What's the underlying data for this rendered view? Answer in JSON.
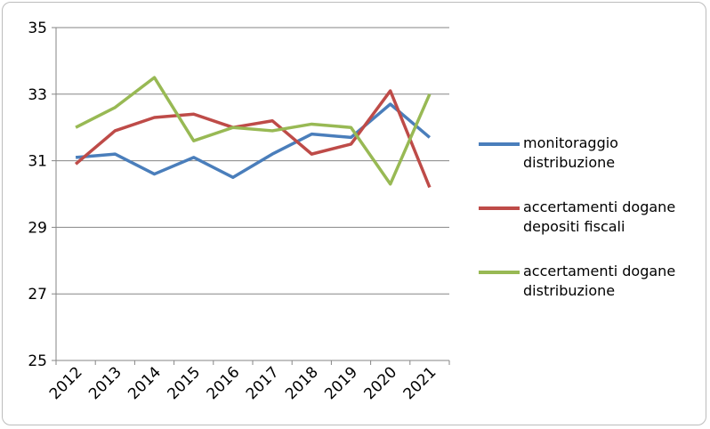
{
  "chart_data": {
    "type": "line",
    "categories": [
      "2012",
      "2013",
      "2014",
      "2015",
      "2016",
      "2017",
      "2018",
      "2019",
      "2020",
      "2021"
    ],
    "series": [
      {
        "name": "monitoraggio distribuzione",
        "color": "#4a7ebb",
        "values": [
          31.1,
          31.2,
          30.6,
          31.1,
          30.5,
          31.2,
          31.8,
          31.7,
          32.7,
          31.7
        ]
      },
      {
        "name": "accertamenti dogane depositi fiscali",
        "color": "#be4b48",
        "values": [
          30.9,
          31.9,
          32.3,
          32.4,
          32.0,
          32.2,
          31.2,
          31.5,
          33.1,
          30.2
        ]
      },
      {
        "name": "accertamenti dogane distribuzione",
        "color": "#98b954",
        "values": [
          32.0,
          32.6,
          33.5,
          31.6,
          32.0,
          31.9,
          32.1,
          32.0,
          30.3,
          33.0
        ]
      }
    ],
    "ylim": [
      25,
      35
    ],
    "yticks": [
      25,
      27,
      29,
      31,
      33,
      35
    ],
    "grid": true,
    "legend": "right"
  }
}
